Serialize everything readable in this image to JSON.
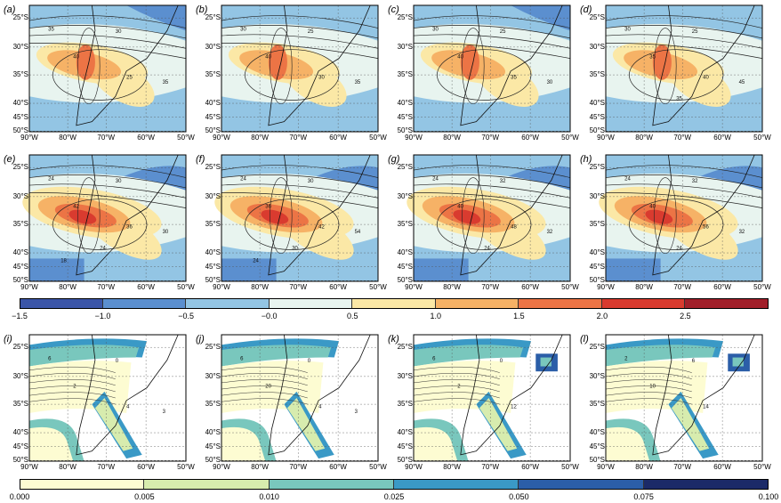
{
  "figure": {
    "panel_labels": [
      "(a)",
      "(b)",
      "(c)",
      "(d)",
      "(e)",
      "(f)",
      "(g)",
      "(h)",
      "(i)",
      "(j)",
      "(k)",
      "(l)"
    ],
    "lat_ticks": [
      "25°S",
      "30°S",
      "35°S",
      "40°S",
      "45°S",
      "50°S"
    ],
    "lon_ticks": [
      "90°W",
      "80°W",
      "70°W",
      "60°W",
      "50°W"
    ],
    "colorbar_top": {
      "ticks": [
        "−1.5",
        "−1.0",
        "−0.5",
        "−0.0",
        "0.5",
        "1.0",
        "1.5",
        "2.0",
        "2.5"
      ],
      "colors": [
        "#3b55a8",
        "#5b8fcf",
        "#93c5e4",
        "#e8f4ef",
        "#fbe8a6",
        "#f6b266",
        "#ec7445",
        "#d93b2f",
        "#a11f2a"
      ]
    },
    "colorbar_bottom": {
      "ticks": [
        "0.000",
        "0.005",
        "0.010",
        "0.025",
        "0.050",
        "0.075",
        "0.100"
      ],
      "colors": [
        "#fdfcd2",
        "#d7ecae",
        "#79c7bd",
        "#3a99c6",
        "#2b5ea8",
        "#1b2a68"
      ]
    },
    "contour_labels": {
      "a": [
        "35",
        "30",
        "40",
        "25",
        "35"
      ],
      "b": [
        "30",
        "25",
        "40",
        "30",
        "35"
      ],
      "c": [
        "30",
        "25",
        "40",
        "35",
        "30"
      ],
      "d": [
        "30",
        "25",
        "35",
        "40",
        "45",
        "35"
      ],
      "e": [
        "24",
        "30",
        "42",
        "36",
        "30",
        "24",
        "18"
      ],
      "f": [
        "24",
        "30",
        "36",
        "42",
        "54",
        "30",
        "24"
      ],
      "g": [
        "24",
        "32",
        "40",
        "48",
        "32",
        "24"
      ],
      "h": [
        "24",
        "32",
        "40",
        "56",
        "32",
        "24"
      ],
      "i": [
        "6",
        "0",
        "2",
        "4",
        "3"
      ],
      "j": [
        "6",
        "0",
        "20",
        "4",
        "3"
      ],
      "k": [
        "6",
        "0",
        "2",
        "12"
      ],
      "l": [
        "2",
        "6",
        "10",
        "14"
      ]
    }
  }
}
